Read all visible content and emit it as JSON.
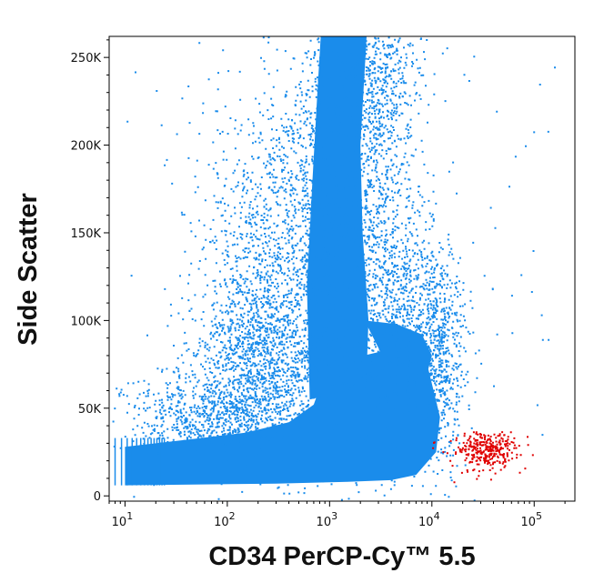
{
  "chart_data": {
    "type": "scatter",
    "title": "",
    "xlabel": "CD34 PerCP-Cy™ 5.5",
    "ylabel": "Side Scatter",
    "x_scale": "log",
    "xlim": [
      7,
      250000
    ],
    "ylim": [
      -3000,
      262000
    ],
    "x_ticks": [
      {
        "value": 10,
        "base": "10",
        "exp": "1"
      },
      {
        "value": 100,
        "base": "10",
        "exp": "2"
      },
      {
        "value": 1000,
        "base": "10",
        "exp": "3"
      },
      {
        "value": 10000,
        "base": "10",
        "exp": "4"
      },
      {
        "value": 100000,
        "base": "10",
        "exp": "5"
      }
    ],
    "y_ticks": [
      {
        "value": 0,
        "label": "0"
      },
      {
        "value": 50000,
        "label": "50K"
      },
      {
        "value": 100000,
        "label": "100K"
      },
      {
        "value": 150000,
        "label": "150K"
      },
      {
        "value": 200000,
        "label": "200K"
      },
      {
        "value": 250000,
        "label": "250K"
      }
    ],
    "grid": false,
    "legend": "none",
    "series": [
      {
        "color": "#1a8ceb",
        "description_points": [
          {
            "x": 10,
            "y": 25000
          },
          {
            "x": 100,
            "y": 30000
          },
          {
            "x": 500,
            "y": 45000
          },
          {
            "x": 1000,
            "y": 120000
          },
          {
            "x": 1000,
            "y": 250000
          },
          {
            "x": 3000,
            "y": 60000
          },
          {
            "x": 8000,
            "y": 60000
          },
          {
            "x": 10000,
            "y": 20000
          }
        ]
      },
      {
        "color": "#e00000",
        "description_points": [
          {
            "x": 20000,
            "y": 25000
          },
          {
            "x": 30000,
            "y": 22000
          },
          {
            "x": 40000,
            "y": 28000
          },
          {
            "x": 50000,
            "y": 30000
          },
          {
            "x": 60000,
            "y": 24000
          }
        ]
      }
    ]
  }
}
